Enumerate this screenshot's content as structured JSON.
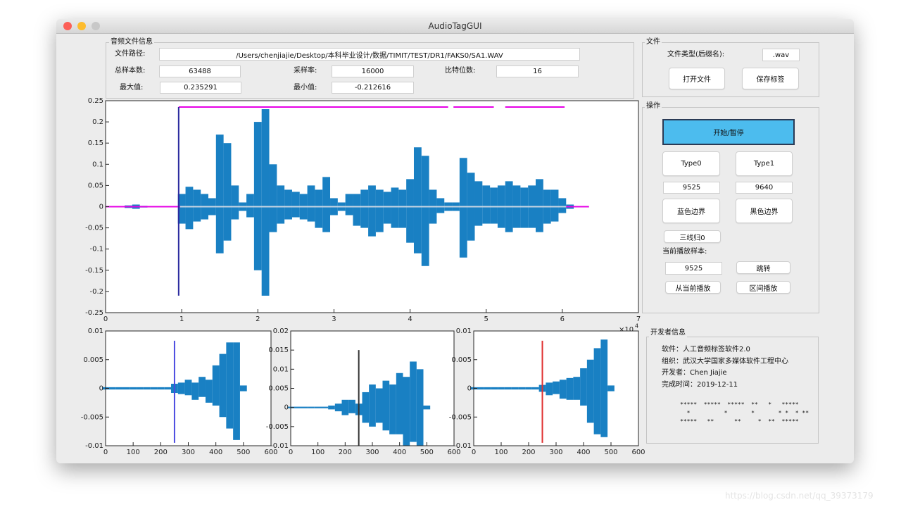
{
  "window": {
    "title": "AudioTagGUI"
  },
  "file_info": {
    "legend": "音频文件信息",
    "path_label": "文件路径:",
    "path": "/Users/chenjiajie/Desktop/本科毕业设计/数据/TIMIT/TEST/DR1/FAKS0/SA1.WAV",
    "samples_label": "总样本数:",
    "samples": "63488",
    "rate_label": "采样率:",
    "rate": "16000",
    "bits_label": "比特位数:",
    "bits": "16",
    "max_label": "最大值:",
    "max": "0.235291",
    "min_label": "最小值:",
    "min": "-0.212616"
  },
  "file_panel": {
    "legend": "文件",
    "type_label": "文件类型(后缀名):",
    "type": ".wav",
    "open": "打开文件",
    "save": "保存标签"
  },
  "ops_panel": {
    "legend": "操作",
    "play": "开始/暂停",
    "type0": "Type0",
    "type1": "Type1",
    "type0_value": "9525",
    "type1_value": "9640",
    "blue": "蓝色边界",
    "black": "黑色边界",
    "reset": "三线归0",
    "current_label": "当前播放样本:",
    "current": "9525",
    "jump": "跳转",
    "from_current": "从当前播放",
    "range_play": "区间播放"
  },
  "dev_panel": {
    "legend": "开发者信息",
    "lines": [
      "软件：人工音频标签软件2.0",
      "组织：武汉大学国家多媒体软件工程中心",
      "开发者：Chen Jiajie",
      "完成时间：2019-12-11"
    ],
    "art": [
      "*****  *****  *****  **   *   *****",
      "  *          *       *       * *  * **",
      "*****   **      **     *  **  *****"
    ]
  },
  "watermark": "https://blog.csdn.net/qq_39373179",
  "chart_data": [
    {
      "type": "waveform",
      "xlim": [
        0,
        7
      ],
      "xticks": [
        0,
        1,
        2,
        3,
        4,
        5,
        6,
        7
      ],
      "ylim": [
        -0.25,
        0.25
      ],
      "yticks": [
        -0.25,
        -0.2,
        -0.15,
        -0.1,
        -0.05,
        0,
        0.05,
        0.1,
        0.15,
        0.2,
        0.25
      ],
      "x_scale_label": "×10",
      "x_scale_exponent": "4",
      "series": [
        {
          "color": "#0072bd",
          "x": [
            0.3,
            0.4,
            0.5,
            0.6,
            0.7,
            0.8,
            0.9,
            1.0,
            1.1,
            1.2,
            1.3,
            1.4,
            1.5,
            1.6,
            1.7,
            1.8,
            1.9,
            2.0,
            2.1,
            2.2,
            2.3,
            2.4,
            2.5,
            2.6,
            2.7,
            2.8,
            2.9,
            3.0,
            3.1,
            3.2,
            3.3,
            3.4,
            3.5,
            3.6,
            3.7,
            3.8,
            3.9,
            4.0,
            4.1,
            4.2,
            4.3,
            4.4,
            4.5,
            4.6,
            4.7,
            4.8,
            4.9,
            5.0,
            5.1,
            5.2,
            5.3,
            5.4,
            5.5,
            5.6,
            5.7,
            5.8,
            5.9,
            6.0,
            6.1,
            6.2,
            6.3
          ],
          "max": [
            0.003,
            0.005,
            0.002,
            0,
            0,
            0,
            0,
            0.03,
            0.047,
            0.04,
            0.03,
            0.02,
            0.17,
            0.15,
            0.05,
            0.01,
            0.03,
            0.2,
            0.23,
            0.1,
            0.05,
            0.04,
            0.035,
            0.03,
            0.05,
            0.04,
            0.07,
            0.02,
            0.01,
            0.03,
            0.03,
            0.04,
            0.05,
            0.04,
            0.035,
            0.045,
            0.04,
            0.065,
            0.14,
            0.12,
            0.04,
            0.02,
            0.01,
            0.01,
            0.115,
            0.08,
            0.06,
            0.05,
            0.045,
            0.05,
            0.06,
            0.05,
            0.045,
            0.05,
            0.065,
            0.04,
            0.04,
            0.02,
            0.005,
            0,
            0
          ],
          "min": [
            -0.003,
            -0.005,
            -0.002,
            0,
            0,
            0,
            0,
            -0.04,
            -0.053,
            -0.035,
            -0.03,
            -0.02,
            -0.11,
            -0.08,
            -0.03,
            -0.01,
            -0.025,
            -0.15,
            -0.21,
            -0.06,
            -0.04,
            -0.03,
            -0.025,
            -0.03,
            -0.035,
            -0.05,
            -0.06,
            -0.02,
            -0.01,
            -0.02,
            -0.045,
            -0.05,
            -0.07,
            -0.06,
            -0.04,
            -0.05,
            -0.05,
            -0.085,
            -0.11,
            -0.14,
            -0.04,
            -0.015,
            -0.01,
            -0.01,
            -0.12,
            -0.08,
            -0.045,
            -0.04,
            -0.04,
            -0.05,
            -0.06,
            -0.05,
            -0.05,
            -0.05,
            -0.06,
            -0.04,
            -0.035,
            -0.015,
            -0.005,
            0,
            0
          ]
        }
      ],
      "segments": [
        {
          "color": "#e600e6",
          "x": [
            0,
            6.35
          ],
          "y": [
            0,
            0
          ]
        },
        {
          "color": "#c9d6e3",
          "x": [
            0.98,
            6.05
          ],
          "y": [
            0,
            0
          ]
        },
        {
          "color": "#e600e6",
          "x": [
            0.96,
            4.5
          ],
          "y": [
            0.235,
            0.235
          ]
        },
        {
          "color": "#e600e6",
          "x": [
            4.57,
            5.1
          ],
          "y": [
            0.235,
            0.235
          ]
        },
        {
          "color": "#e600e6",
          "x": [
            5.25,
            6.03
          ],
          "y": [
            0.235,
            0.235
          ]
        },
        {
          "color": "#2b2b9e",
          "x": [
            0.96,
            0.96
          ],
          "y": [
            -0.21,
            0.235
          ]
        }
      ]
    },
    {
      "type": "waveform",
      "xlim": [
        0,
        600
      ],
      "xticks": [
        0,
        100,
        200,
        300,
        400,
        500,
        600
      ],
      "ylim": [
        -0.01,
        0.01
      ],
      "yticks": [
        -0.01,
        -0.005,
        0,
        0.005,
        0.01
      ],
      "series": [
        {
          "color": "#0072bd",
          "x": [
            0,
            25,
            50,
            75,
            100,
            125,
            150,
            175,
            200,
            225,
            250,
            275,
            300,
            325,
            350,
            375,
            400,
            425,
            450,
            475,
            500
          ],
          "max": [
            0.0002,
            0.0002,
            0.0002,
            0.0002,
            0.0002,
            0.0002,
            0.0002,
            0.0002,
            0.0002,
            0.0002,
            0.0008,
            0.001,
            0.0015,
            0.001,
            0.002,
            0.0015,
            0.004,
            0.006,
            0.008,
            0.008,
            0.0005
          ],
          "min": [
            -0.0002,
            -0.0002,
            -0.0002,
            -0.0002,
            -0.0002,
            -0.0002,
            -0.0002,
            -0.0002,
            -0.0002,
            -0.0002,
            -0.0008,
            -0.001,
            -0.0012,
            -0.002,
            -0.0015,
            -0.0025,
            -0.003,
            -0.005,
            -0.007,
            -0.009,
            -0.0005
          ]
        }
      ],
      "segments": [
        {
          "color": "#4a4ae0",
          "x": [
            250,
            250
          ],
          "y": [
            -0.0095,
            0.0083
          ]
        }
      ]
    },
    {
      "type": "waveform",
      "xlim": [
        0,
        600
      ],
      "xticks": [
        0,
        100,
        200,
        300,
        400,
        500,
        600
      ],
      "ylim": [
        -0.01,
        0.02
      ],
      "yticks": [
        -0.01,
        -0.005,
        0,
        0.005,
        0.01,
        0.015,
        0.02
      ],
      "series": [
        {
          "color": "#0072bd",
          "x": [
            0,
            25,
            50,
            75,
            100,
            125,
            150,
            175,
            200,
            225,
            250,
            275,
            300,
            325,
            350,
            375,
            400,
            425,
            450,
            475,
            500
          ],
          "max": [
            0.0002,
            0.0002,
            0.0002,
            0.0002,
            0.0002,
            0.0002,
            0.0005,
            0.001,
            0.002,
            0.002,
            0.001,
            0.004,
            0.006,
            0.005,
            0.007,
            0.006,
            0.009,
            0.008,
            0.012,
            0.01,
            0.0005
          ],
          "min": [
            -0.0002,
            -0.0002,
            -0.0002,
            -0.0002,
            -0.0002,
            -0.0002,
            -0.0005,
            -0.001,
            -0.002,
            -0.0015,
            -0.002,
            -0.004,
            -0.005,
            -0.004,
            -0.006,
            -0.007,
            -0.007,
            -0.01,
            -0.009,
            -0.01,
            -0.0005
          ]
        }
      ],
      "segments": [
        {
          "color": "#333333",
          "x": [
            250,
            250
          ],
          "y": [
            -0.01,
            0.015
          ]
        }
      ]
    },
    {
      "type": "waveform",
      "xlim": [
        0,
        600
      ],
      "xticks": [
        0,
        100,
        200,
        300,
        400,
        500,
        600
      ],
      "ylim": [
        -0.01,
        0.01
      ],
      "yticks": [
        -0.01,
        -0.005,
        0,
        0.005,
        0.01
      ],
      "series": [
        {
          "color": "#0072bd",
          "x": [
            0,
            25,
            50,
            75,
            100,
            125,
            150,
            175,
            200,
            225,
            250,
            275,
            300,
            325,
            350,
            375,
            400,
            425,
            450,
            475,
            500
          ],
          "max": [
            0.0002,
            0.0002,
            0.0002,
            0.0002,
            0.0002,
            0.0002,
            0.0002,
            0.0002,
            0.0002,
            0.0002,
            0.0006,
            0.001,
            0.0012,
            0.0015,
            0.0018,
            0.002,
            0.0035,
            0.005,
            0.007,
            0.0085,
            0.0005
          ],
          "min": [
            -0.0002,
            -0.0002,
            -0.0002,
            -0.0002,
            -0.0002,
            -0.0002,
            -0.0002,
            -0.0002,
            -0.0002,
            -0.0002,
            -0.0006,
            -0.0012,
            -0.001,
            -0.0018,
            -0.002,
            -0.002,
            -0.003,
            -0.006,
            -0.008,
            -0.0085,
            -0.0005
          ]
        }
      ],
      "segments": [
        {
          "color": "#e03030",
          "x": [
            250,
            250
          ],
          "y": [
            -0.0095,
            0.0083
          ]
        }
      ]
    }
  ]
}
